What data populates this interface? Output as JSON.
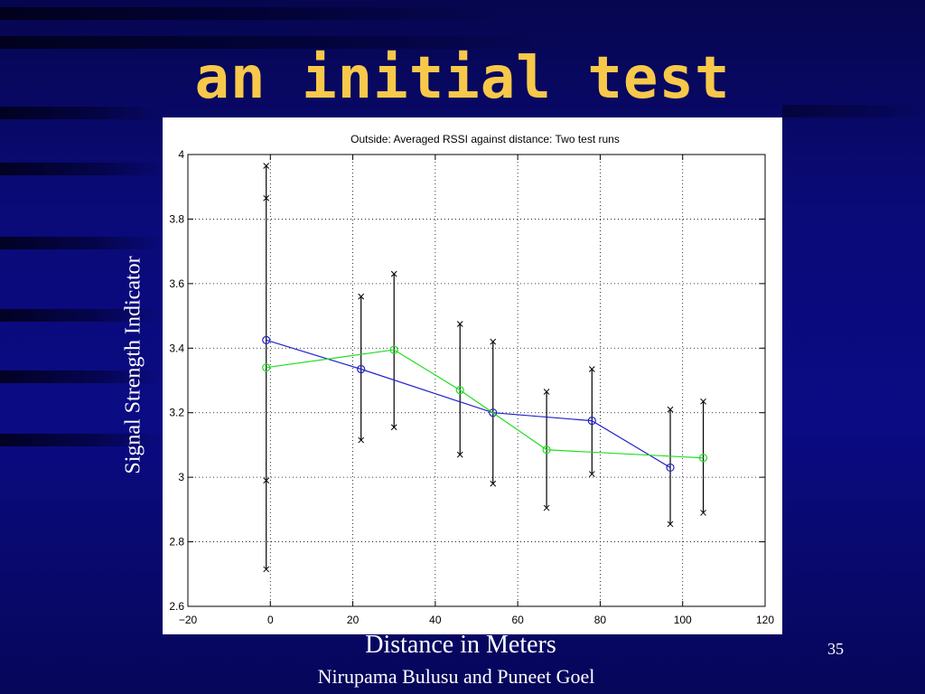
{
  "slide": {
    "title": "an initial test",
    "footer": "Nirupama Bulusu and Puneet Goel",
    "page_number": "35"
  },
  "chart_data": {
    "type": "line",
    "title": "Outside: Averaged RSSI against distance: Two test runs",
    "xlabel": "Distance in Meters",
    "ylabel": "Signal Strength Indicator",
    "xlim": [
      -20,
      120
    ],
    "ylim": [
      2.6,
      4
    ],
    "xticks": [
      -20,
      0,
      20,
      40,
      60,
      80,
      100,
      120
    ],
    "yticks": [
      2.6,
      2.8,
      3,
      3.2,
      3.4,
      3.6,
      3.8,
      4
    ],
    "grid": true,
    "series": [
      {
        "color": "#2222cc",
        "marker": "circle",
        "x": [
          -1,
          22,
          54,
          78,
          97
        ],
        "y": [
          3.425,
          3.335,
          3.2,
          3.175,
          3.03
        ]
      },
      {
        "color": "#22dd22",
        "marker": "circle",
        "x": [
          -1,
          30,
          46,
          67,
          105
        ],
        "y": [
          3.34,
          3.395,
          3.27,
          3.085,
          3.06
        ]
      }
    ],
    "error_bars": [
      {
        "x": -1,
        "low": 2.715,
        "high": 3.965,
        "extra": [
          3.865,
          2.99
        ]
      },
      {
        "x": 22,
        "low": 3.115,
        "high": 3.56
      },
      {
        "x": 30,
        "low": 3.155,
        "high": 3.63
      },
      {
        "x": 46,
        "low": 3.07,
        "high": 3.475
      },
      {
        "x": 54,
        "low": 2.98,
        "high": 3.42
      },
      {
        "x": 67,
        "low": 2.905,
        "high": 3.265
      },
      {
        "x": 78,
        "low": 3.01,
        "high": 3.335
      },
      {
        "x": 97,
        "low": 2.855,
        "high": 3.21
      },
      {
        "x": 105,
        "low": 2.89,
        "high": 3.235
      }
    ]
  }
}
